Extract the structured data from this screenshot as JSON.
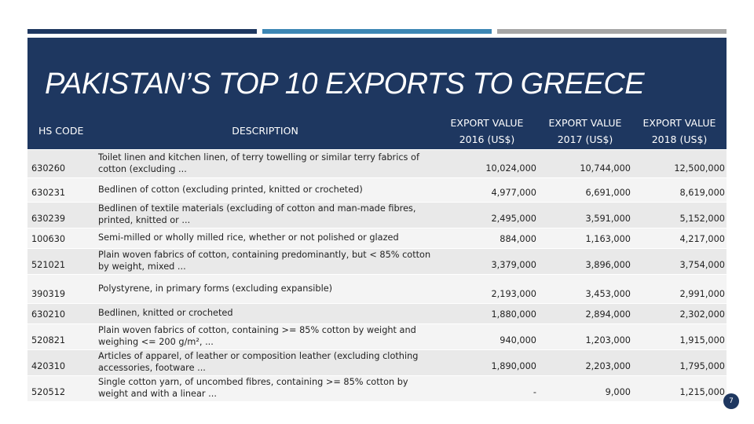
{
  "title": "PAKISTAN’S TOP 10 EXPORTS TO GREECE",
  "table": {
    "columns": [
      "HS CODE",
      "DESCRIPTION",
      "EXPORT VALUE 2016 (US$)",
      "EXPORT VALUE 2017 (US$)",
      "EXPORT VALUE 2018 (US$)"
    ],
    "rows": [
      [
        "630260",
        "Toilet linen and kitchen linen, of terry towelling or similar terry fabrics of cotton (excluding ...",
        "10,024,000",
        "10,744,000",
        "12,500,000"
      ],
      [
        "630231",
        "Bedlinen of cotton (excluding printed, knitted or crocheted)",
        "4,977,000",
        "6,691,000",
        "8,619,000"
      ],
      [
        "630239",
        "Bedlinen of textile materials (excluding of cotton and man-made fibres, printed, knitted or ...",
        "2,495,000",
        "3,591,000",
        "5,152,000"
      ],
      [
        "100630",
        "Semi-milled or wholly milled rice, whether or not polished or glazed",
        "884,000",
        "1,163,000",
        "4,217,000"
      ],
      [
        "521021",
        "Plain woven fabrics of cotton, containing predominantly, but < 85% cotton by weight, mixed ...",
        "3,379,000",
        "3,896,000",
        "3,754,000"
      ],
      [
        "390319",
        "Polystyrene, in primary forms (excluding expansible)",
        "2,193,000",
        "3,453,000",
        "2,991,000"
      ],
      [
        "630210",
        "Bedlinen, knitted or crocheted",
        "1,880,000",
        "2,894,000",
        "2,302,000"
      ],
      [
        "520821",
        "Plain woven fabrics of cotton, containing >= 85% cotton by weight and weighing <= 200 g/m², ...",
        "940,000",
        "1,203,000",
        "1,915,000"
      ],
      [
        "420310",
        "Articles of apparel, of leather or composition leather (excluding clothing accessories, footware ...",
        "1,890,000",
        "2,203,000",
        "1,795,000"
      ],
      [
        "520512",
        "Single cotton yarn, of uncombed fibres, containing >= 85% cotton by weight and with a linear ...",
        "-",
        "9,000",
        "1,215,000"
      ]
    ]
  },
  "page_number": "7"
}
